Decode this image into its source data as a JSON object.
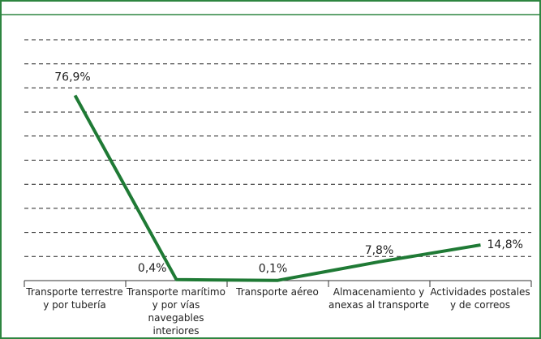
{
  "chart_data": {
    "type": "line",
    "categories": [
      "Transporte terrestre y por tubería",
      "Transporte marítimo y por vías navegables interiores",
      "Transporte aéreo",
      "Almacenamiento y anexas al transporte",
      "Actividades postales y de correos"
    ],
    "series": [
      {
        "color": "#1f7a35",
        "values": [
          76.9,
          0.4,
          0.1,
          7.8,
          14.8
        ],
        "value_labels": [
          "76,9%",
          "0,4%",
          "0,1%",
          "7,8%",
          "14,8%"
        ]
      }
    ],
    "ylim": [
      0,
      100
    ],
    "yticks": [
      0,
      10,
      20,
      30,
      40,
      50,
      60,
      70,
      80,
      90,
      100
    ],
    "grid": true
  }
}
